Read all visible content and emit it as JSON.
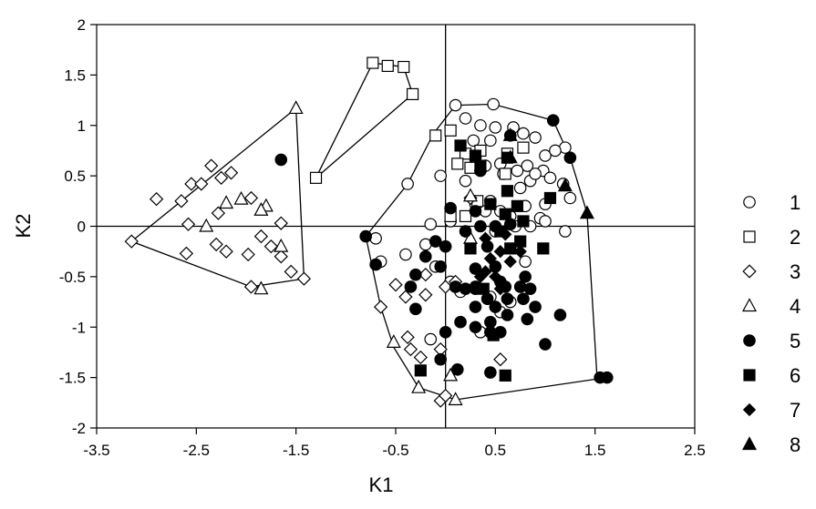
{
  "chart_data": {
    "type": "scatter",
    "title": "",
    "xlabel": "K1",
    "ylabel": "K2",
    "xlim": [
      -3.5,
      2.5
    ],
    "ylim": [
      -2,
      2
    ],
    "xticks": [
      -3.5,
      -2.5,
      -1.5,
      -0.5,
      0.5,
      1.5,
      2.5
    ],
    "yticks": [
      -2,
      -1.5,
      -1,
      -0.5,
      0,
      0.5,
      1,
      1.5,
      2
    ],
    "xtick_labels": [
      "-3.5",
      "-2.5",
      "-1.5",
      "-0.5",
      "0.5",
      "1.5",
      "2.5"
    ],
    "ytick_labels": [
      "-2",
      "-1.5",
      "-1",
      "-0.5",
      "0",
      "0.5",
      "1",
      "1.5",
      "2"
    ],
    "reference_lines": {
      "x": 0,
      "y": 0
    },
    "grid": false,
    "legend_position": "right",
    "series": [
      {
        "name": "1",
        "marker": "circle-open",
        "points": [
          [
            0.1,
            1.2
          ],
          [
            0.48,
            1.21
          ],
          [
            0.2,
            1.07
          ],
          [
            0.35,
            1.0
          ],
          [
            0.5,
            0.98
          ],
          [
            0.68,
            0.98
          ],
          [
            0.28,
            0.85
          ],
          [
            0.45,
            0.85
          ],
          [
            0.78,
            0.92
          ],
          [
            0.9,
            0.88
          ],
          [
            1.2,
            0.78
          ],
          [
            1.0,
            0.7
          ],
          [
            1.1,
            0.75
          ],
          [
            0.55,
            0.62
          ],
          [
            0.82,
            0.6
          ],
          [
            0.98,
            0.55
          ],
          [
            0.4,
            0.6
          ],
          [
            0.3,
            0.58
          ],
          [
            0.85,
            0.45
          ],
          [
            1.05,
            0.48
          ],
          [
            1.18,
            0.42
          ],
          [
            1.25,
            0.28
          ],
          [
            0.3,
            0.68
          ],
          [
            0.58,
            0.52
          ],
          [
            0.72,
            0.55
          ],
          [
            0.9,
            0.52
          ],
          [
            0.75,
            0.38
          ],
          [
            0.3,
            0.22
          ],
          [
            0.45,
            0.25
          ],
          [
            0.55,
            0.15
          ],
          [
            0.65,
            0.1
          ],
          [
            0.8,
            0.2
          ],
          [
            1.0,
            0.22
          ],
          [
            0.95,
            0.08
          ],
          [
            0.7,
            0.0
          ],
          [
            0.85,
            0.0
          ],
          [
            1.2,
            -0.05
          ],
          [
            1.0,
            0.05
          ],
          [
            -0.38,
            0.42
          ],
          [
            -0.05,
            0.5
          ],
          [
            0.2,
            0.45
          ],
          [
            0.4,
            0.15
          ],
          [
            0.05,
            0.05
          ],
          [
            -0.15,
            0.02
          ],
          [
            0.5,
            -0.05
          ],
          [
            -0.7,
            -0.12
          ],
          [
            -0.4,
            -0.28
          ],
          [
            -0.2,
            -0.18
          ],
          [
            -0.65,
            -0.35
          ],
          [
            -0.1,
            -0.4
          ],
          [
            0.05,
            -0.55
          ],
          [
            0.15,
            -0.65
          ],
          [
            0.45,
            -0.7
          ],
          [
            0.55,
            -0.85
          ],
          [
            0.35,
            -1.05
          ],
          [
            -0.15,
            -1.12
          ],
          [
            0.1,
            -0.6
          ],
          [
            0.65,
            -0.75
          ],
          [
            0.8,
            -0.35
          ]
        ]
      },
      {
        "name": "2",
        "marker": "square-open",
        "points": [
          [
            -0.73,
            1.62
          ],
          [
            -0.58,
            1.59
          ],
          [
            -0.42,
            1.58
          ],
          [
            -0.33,
            1.31
          ],
          [
            -1.3,
            0.48
          ],
          [
            0.05,
            0.95
          ],
          [
            -0.1,
            0.9
          ],
          [
            0.2,
            0.72
          ],
          [
            0.35,
            0.75
          ],
          [
            0.62,
            0.72
          ],
          [
            0.78,
            0.78
          ],
          [
            0.25,
            0.58
          ],
          [
            0.12,
            0.62
          ],
          [
            0.6,
            0.52
          ],
          [
            0.32,
            0.25
          ],
          [
            0.2,
            0.1
          ],
          [
            0.05,
            0.1
          ]
        ]
      },
      {
        "name": "3",
        "marker": "diamond-open",
        "points": [
          [
            -3.15,
            -0.15
          ],
          [
            -2.9,
            0.27
          ],
          [
            -2.65,
            0.25
          ],
          [
            -2.55,
            0.42
          ],
          [
            -2.45,
            0.42
          ],
          [
            -2.35,
            0.6
          ],
          [
            -2.25,
            0.48
          ],
          [
            -2.15,
            0.53
          ],
          [
            -1.95,
            0.28
          ],
          [
            -2.28,
            0.13
          ],
          [
            -2.58,
            0.02
          ],
          [
            -2.3,
            -0.18
          ],
          [
            -2.2,
            -0.25
          ],
          [
            -2.6,
            -0.27
          ],
          [
            -1.85,
            -0.1
          ],
          [
            -1.75,
            -0.2
          ],
          [
            -1.98,
            -0.28
          ],
          [
            -1.65,
            -0.3
          ],
          [
            -1.65,
            0.03
          ],
          [
            -1.55,
            -0.45
          ],
          [
            -1.42,
            -0.52
          ],
          [
            -1.95,
            -0.6
          ],
          [
            -0.5,
            -0.58
          ],
          [
            -0.2,
            -0.48
          ],
          [
            0.0,
            -0.6
          ],
          [
            -0.4,
            -0.7
          ],
          [
            -0.65,
            -0.8
          ],
          [
            -0.2,
            -0.68
          ],
          [
            0.1,
            -0.55
          ],
          [
            -0.38,
            -1.1
          ],
          [
            -0.35,
            -1.22
          ],
          [
            -0.25,
            -1.3
          ],
          [
            -0.05,
            -1.22
          ],
          [
            0.55,
            -1.32
          ],
          [
            -0.05,
            -1.73
          ],
          [
            0.0,
            -1.68
          ],
          [
            0.25,
            0.28
          ]
        ]
      },
      {
        "name": "4",
        "marker": "triangle-open",
        "points": [
          [
            -1.5,
            1.17
          ],
          [
            -2.2,
            0.23
          ],
          [
            -2.05,
            0.27
          ],
          [
            -1.8,
            0.2
          ],
          [
            -1.85,
            0.16
          ],
          [
            -1.65,
            -0.2
          ],
          [
            -2.4,
            0.0
          ],
          [
            -1.85,
            -0.62
          ],
          [
            -0.52,
            -1.15
          ],
          [
            -0.27,
            -1.6
          ],
          [
            0.05,
            -1.48
          ],
          [
            0.1,
            -1.72
          ],
          [
            0.25,
            -0.12
          ],
          [
            0.25,
            0.3
          ]
        ]
      },
      {
        "name": "5",
        "marker": "circle-filled",
        "points": [
          [
            -1.65,
            0.66
          ],
          [
            1.08,
            1.05
          ],
          [
            0.65,
            0.9
          ],
          [
            1.25,
            0.68
          ],
          [
            0.35,
            0.55
          ],
          [
            0.05,
            0.18
          ],
          [
            0.3,
            0.15
          ],
          [
            -0.8,
            -0.1
          ],
          [
            -0.7,
            -0.38
          ],
          [
            -0.3,
            -0.48
          ],
          [
            -0.2,
            -0.3
          ],
          [
            -0.05,
            -0.4
          ],
          [
            -0.35,
            -0.6
          ],
          [
            0.1,
            -0.6
          ],
          [
            0.2,
            -0.62
          ],
          [
            0.3,
            -0.6
          ],
          [
            0.3,
            -0.8
          ],
          [
            0.42,
            -0.72
          ],
          [
            0.55,
            -0.55
          ],
          [
            0.62,
            -0.72
          ],
          [
            0.75,
            -0.6
          ],
          [
            0.85,
            -0.62
          ],
          [
            0.9,
            -0.8
          ],
          [
            0.82,
            -0.92
          ],
          [
            0.62,
            -0.88
          ],
          [
            0.5,
            -0.8
          ],
          [
            0.45,
            -0.95
          ],
          [
            0.3,
            -0.62
          ],
          [
            -0.3,
            -0.82
          ],
          [
            0.15,
            -0.95
          ],
          [
            0.0,
            -1.05
          ],
          [
            0.3,
            -1.0
          ],
          [
            0.45,
            -1.05
          ],
          [
            0.55,
            -1.05
          ],
          [
            1.0,
            -1.17
          ],
          [
            1.15,
            -0.88
          ],
          [
            -0.05,
            -1.32
          ],
          [
            0.12,
            -1.42
          ],
          [
            0.45,
            -1.45
          ],
          [
            1.55,
            -1.5
          ],
          [
            1.62,
            -1.5
          ],
          [
            0.35,
            0.0
          ],
          [
            0.5,
            0.0
          ],
          [
            0.65,
            0.02
          ],
          [
            0.42,
            -0.2
          ],
          [
            0.3,
            -0.42
          ],
          [
            0.5,
            -0.4
          ],
          [
            0.8,
            -0.5
          ],
          [
            0.78,
            -0.72
          ],
          [
            0.6,
            -0.6
          ],
          [
            0.2,
            -0.05
          ],
          [
            -0.1,
            -0.15
          ],
          [
            0.0,
            -0.2
          ]
        ]
      },
      {
        "name": "6",
        "marker": "square-filled",
        "points": [
          [
            0.15,
            0.8
          ],
          [
            0.3,
            0.7
          ],
          [
            0.35,
            0.6
          ],
          [
            0.62,
            0.68
          ],
          [
            0.62,
            0.35
          ],
          [
            0.72,
            0.2
          ],
          [
            1.05,
            0.28
          ],
          [
            0.45,
            0.22
          ],
          [
            0.6,
            0.12
          ],
          [
            0.78,
            0.05
          ],
          [
            0.55,
            -0.05
          ],
          [
            0.75,
            -0.15
          ],
          [
            0.65,
            -0.22
          ],
          [
            0.25,
            -0.22
          ],
          [
            0.98,
            -0.22
          ],
          [
            0.38,
            -0.62
          ],
          [
            0.48,
            -1.08
          ],
          [
            -0.25,
            -1.43
          ],
          [
            0.6,
            -1.48
          ]
        ]
      },
      {
        "name": "7",
        "marker": "diamond-filled",
        "points": [
          [
            0.4,
            -0.12
          ],
          [
            0.55,
            -0.25
          ],
          [
            0.45,
            -0.32
          ],
          [
            0.65,
            -0.35
          ],
          [
            0.35,
            -0.5
          ],
          [
            0.5,
            -0.5
          ],
          [
            0.75,
            -0.25
          ],
          [
            0.55,
            -0.62
          ],
          [
            0.4,
            -0.45
          ],
          [
            0.6,
            -0.08
          ]
        ]
      },
      {
        "name": "8",
        "marker": "triangle-filled",
        "points": [
          [
            0.65,
            0.9
          ],
          [
            1.2,
            0.4
          ],
          [
            1.42,
            0.13
          ],
          [
            0.65,
            0.68
          ]
        ]
      }
    ],
    "hulls": [
      [
        [
          -3.15,
          -0.15
        ],
        [
          -1.5,
          1.17
        ],
        [
          -1.42,
          -0.52
        ],
        [
          -1.95,
          -0.6
        ]
      ],
      [
        [
          -1.3,
          0.48
        ],
        [
          -0.73,
          1.62
        ],
        [
          -0.42,
          1.58
        ],
        [
          -0.33,
          1.31
        ]
      ],
      [
        [
          0.1,
          1.2
        ],
        [
          0.48,
          1.21
        ],
        [
          1.08,
          1.05
        ],
        [
          1.25,
          0.68
        ],
        [
          1.42,
          0.13
        ],
        [
          1.52,
          -1.5
        ],
        [
          1.62,
          -1.5
        ],
        [
          0.1,
          -1.72
        ],
        [
          -0.27,
          -1.6
        ],
        [
          -0.52,
          -1.2
        ],
        [
          -0.65,
          -0.8
        ],
        [
          -0.8,
          -0.1
        ],
        [
          -0.38,
          0.42
        ],
        [
          -0.12,
          0.92
        ]
      ]
    ]
  }
}
